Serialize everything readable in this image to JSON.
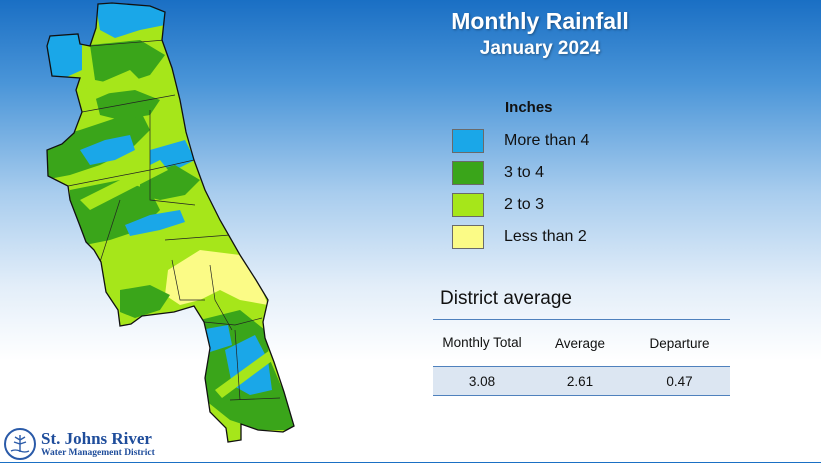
{
  "title": "Monthly Rainfall",
  "subtitle": "January 2024",
  "legend": {
    "title": "Inches",
    "items": [
      {
        "label": "More than 4",
        "color": "#1aa7e8"
      },
      {
        "label": "3 to 4",
        "color": "#3aa51a"
      },
      {
        "label": "2 to 3",
        "color": "#a6e61a"
      },
      {
        "label": "Less than 2",
        "color": "#fbfb86"
      }
    ]
  },
  "district_average": {
    "title": "District average",
    "headers": [
      "Monthly Total",
      "Average",
      "Departure"
    ],
    "values": [
      "3.08",
      "2.61",
      "0.47"
    ]
  },
  "logo": {
    "name": "St. Johns River",
    "subtitle": "Water Management District"
  },
  "map": {
    "region": "St. Johns River Water Management District",
    "county_border_color": "#222222"
  }
}
